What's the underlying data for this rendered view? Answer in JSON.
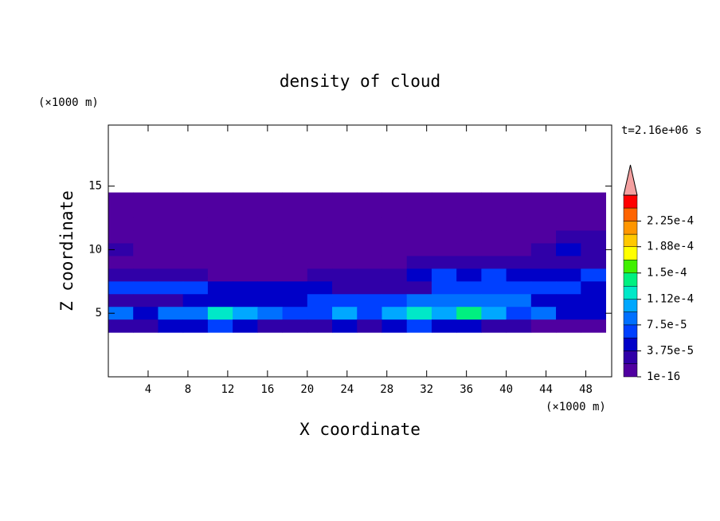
{
  "chart_data": {
    "type": "contour",
    "title": "density of cloud",
    "xlabel": "X coordinate",
    "ylabel": "Z coordinate",
    "x_unit": "(×1000 m)",
    "y_unit": "(×1000 m)",
    "annotation": "t=2.16e+06 s",
    "xlim": [
      0,
      50.6
    ],
    "ylim": [
      0,
      19.8
    ],
    "xticks": [
      4,
      8,
      12,
      16,
      20,
      24,
      28,
      32,
      36,
      40,
      44,
      48
    ],
    "yticks": [
      5,
      10,
      15
    ],
    "x": [
      1.25,
      3.75,
      6.25,
      8.75,
      11.25,
      13.75,
      16.25,
      18.75,
      21.25,
      23.75,
      26.25,
      28.75,
      31.25,
      33.75,
      36.25,
      38.75,
      41.25,
      43.75,
      46.25,
      48.75
    ],
    "y": [
      14,
      13,
      12,
      11,
      10,
      9,
      8,
      7,
      6,
      5,
      4
    ],
    "z": [
      [
        5e-06,
        5e-06,
        5e-06,
        5e-06,
        5e-06,
        5e-06,
        5e-06,
        5e-06,
        5e-06,
        5e-06,
        5e-06,
        5e-06,
        5e-06,
        5e-06,
        5e-06,
        5e-06,
        5e-06,
        5e-06,
        5e-06,
        5e-06
      ],
      [
        5e-06,
        5e-06,
        5e-06,
        5e-06,
        5e-06,
        5e-06,
        5e-06,
        5e-06,
        5e-06,
        5e-06,
        5e-06,
        5e-06,
        5e-06,
        5e-06,
        5e-06,
        5e-06,
        5e-06,
        5e-06,
        5e-06,
        5e-06
      ],
      [
        5e-06,
        5e-06,
        5e-06,
        5e-06,
        5e-06,
        5e-06,
        5e-06,
        5e-06,
        5e-06,
        5e-06,
        5e-06,
        5e-06,
        5e-06,
        5e-06,
        5e-06,
        5e-06,
        5e-06,
        5e-06,
        5e-06,
        5e-06
      ],
      [
        5e-06,
        5e-06,
        5e-06,
        5e-06,
        5e-06,
        5e-06,
        5e-06,
        5e-06,
        5e-06,
        5e-06,
        5e-06,
        5e-06,
        5e-06,
        5e-06,
        5e-06,
        5e-06,
        5e-06,
        5e-06,
        2.5e-05,
        2.5e-05
      ],
      [
        2.5e-05,
        5e-06,
        5e-06,
        5e-06,
        5e-06,
        5e-06,
        5e-06,
        5e-06,
        5e-06,
        5e-06,
        5e-06,
        5e-06,
        5e-06,
        5e-06,
        5e-06,
        5e-06,
        5e-06,
        2.5e-05,
        4.5e-05,
        2.5e-05
      ],
      [
        5e-06,
        5e-06,
        5e-06,
        5e-06,
        5e-06,
        5e-06,
        5e-06,
        5e-06,
        5e-06,
        5e-06,
        5e-06,
        5e-06,
        2.5e-05,
        2.5e-05,
        2.5e-05,
        2.5e-05,
        2.5e-05,
        2.5e-05,
        2.5e-05,
        2.5e-05
      ],
      [
        2.5e-05,
        2.5e-05,
        2.5e-05,
        2.5e-05,
        5e-06,
        5e-06,
        5e-06,
        5e-06,
        2.5e-05,
        2.5e-05,
        2.5e-05,
        2.5e-05,
        4.5e-05,
        6e-05,
        4.5e-05,
        6e-05,
        4.5e-05,
        4.5e-05,
        4.5e-05,
        6e-05
      ],
      [
        6e-05,
        6e-05,
        6e-05,
        6e-05,
        4.5e-05,
        4.5e-05,
        4.5e-05,
        4.5e-05,
        4.5e-05,
        2.5e-05,
        2.5e-05,
        2.5e-05,
        2.5e-05,
        6e-05,
        6e-05,
        6e-05,
        6e-05,
        6e-05,
        6e-05,
        4.5e-05
      ],
      [
        2.5e-05,
        2.5e-05,
        2.5e-05,
        4.5e-05,
        4.5e-05,
        4.5e-05,
        4.5e-05,
        4.5e-05,
        6e-05,
        6e-05,
        6e-05,
        6e-05,
        8e-05,
        8e-05,
        8e-05,
        8e-05,
        8e-05,
        4.5e-05,
        4.5e-05,
        4.5e-05
      ],
      [
        8e-05,
        4.5e-05,
        8e-05,
        8e-05,
        0.00012,
        0.0001,
        8e-05,
        6e-05,
        6e-05,
        0.0001,
        6e-05,
        0.0001,
        0.00012,
        0.0001,
        0.00014,
        0.0001,
        6e-05,
        8e-05,
        4.5e-05,
        4.5e-05
      ],
      [
        2.5e-05,
        2.5e-05,
        4.5e-05,
        4.5e-05,
        6e-05,
        4.5e-05,
        2.5e-05,
        2.5e-05,
        2.5e-05,
        4.5e-05,
        2.5e-05,
        4.5e-05,
        6e-05,
        4.5e-05,
        4.5e-05,
        2.5e-05,
        2.5e-05,
        5e-06,
        5e-06,
        5e-06
      ]
    ],
    "clim": [
      1e-16,
      0.0002625
    ],
    "levels": [
      1e-16,
      1.875e-05,
      3.75e-05,
      5.625e-05,
      7.5e-05,
      9.375e-05,
      0.000112,
      0.000131,
      0.00015,
      0.000169,
      0.000188,
      0.000206,
      0.000225,
      0.000244
    ],
    "colors": [
      "#5000a0",
      "#3000a8",
      "#0000c8",
      "#0040ff",
      "#0070ff",
      "#00a8ff",
      "#00e8c8",
      "#00f080",
      "#40f000",
      "#ffff00",
      "#ffc800",
      "#ff9600",
      "#ff6400",
      "#ff0000"
    ],
    "extend_color": "#f4a0a0",
    "cticks": [
      {
        "value": 1e-16,
        "label": "1e-16"
      },
      {
        "value": 3.75e-05,
        "label": "3.75e-5"
      },
      {
        "value": 7.5e-05,
        "label": "7.5e-5"
      },
      {
        "value": 0.000112,
        "label": "1.12e-4"
      },
      {
        "value": 0.00015,
        "label": "1.5e-4"
      },
      {
        "value": 0.000188,
        "label": "1.88e-4"
      },
      {
        "value": 0.000225,
        "label": "2.25e-4"
      }
    ]
  }
}
